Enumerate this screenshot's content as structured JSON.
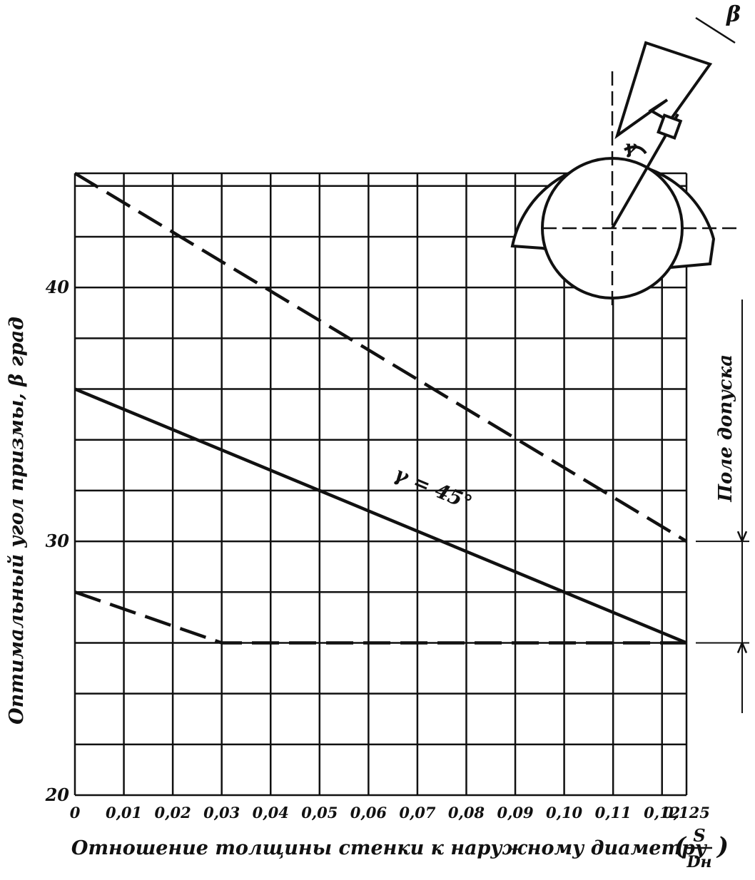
{
  "chart_data": {
    "type": "line",
    "y_label": "Оптимальный угол призмы, β град",
    "x_label": "Отношение толщины стенки к наружному диаметру",
    "x_label_fraction": {
      "numerator": "S",
      "denominator": "Dн"
    },
    "xlim": [
      0,
      0.125
    ],
    "ylim": [
      20,
      44.5
    ],
    "xticks": [
      0,
      {
        "value": 0.01,
        "label": "0,01"
      },
      {
        "value": 0.02,
        "label": "0,02"
      },
      {
        "value": 0.03,
        "label": "0,03"
      },
      {
        "value": 0.04,
        "label": "0,04"
      },
      {
        "value": 0.05,
        "label": "0,05"
      },
      {
        "value": 0.06,
        "label": "0,06"
      },
      {
        "value": 0.07,
        "label": "0,07"
      },
      {
        "value": 0.08,
        "label": "0,08"
      },
      {
        "value": 0.09,
        "label": "0,09"
      },
      {
        "value": 0.1,
        "label": "0,10"
      },
      {
        "value": 0.11,
        "label": "0,11"
      },
      {
        "value": 0.12,
        "label": "0,12"
      },
      {
        "value": 0.125,
        "label": "0,125"
      }
    ],
    "yticks": [
      20,
      30,
      40
    ],
    "ygrid": [
      20,
      22,
      24,
      26,
      28,
      30,
      32,
      34,
      36,
      38,
      40,
      42,
      44,
      44.5
    ],
    "grid": true,
    "series": [
      {
        "color": "#111111",
        "dashed": true,
        "x": [
          0,
          0.125
        ],
        "values": [
          44.5,
          30
        ]
      },
      {
        "color": "#111111",
        "dashed": false,
        "x": [
          0,
          0.125
        ],
        "values": [
          36,
          26
        ]
      },
      {
        "color": "#111111",
        "dashed": true,
        "x": [
          0,
          0.03,
          0.125
        ],
        "values": [
          28,
          26,
          26
        ]
      }
    ],
    "annotation": {
      "text": "γ = 45°",
      "series": 1
    },
    "tolerance": {
      "label": "Поле допуска",
      "values": [
        30,
        26
      ]
    },
    "inset_labels": {
      "beta": "β",
      "gamma": "γ"
    }
  }
}
